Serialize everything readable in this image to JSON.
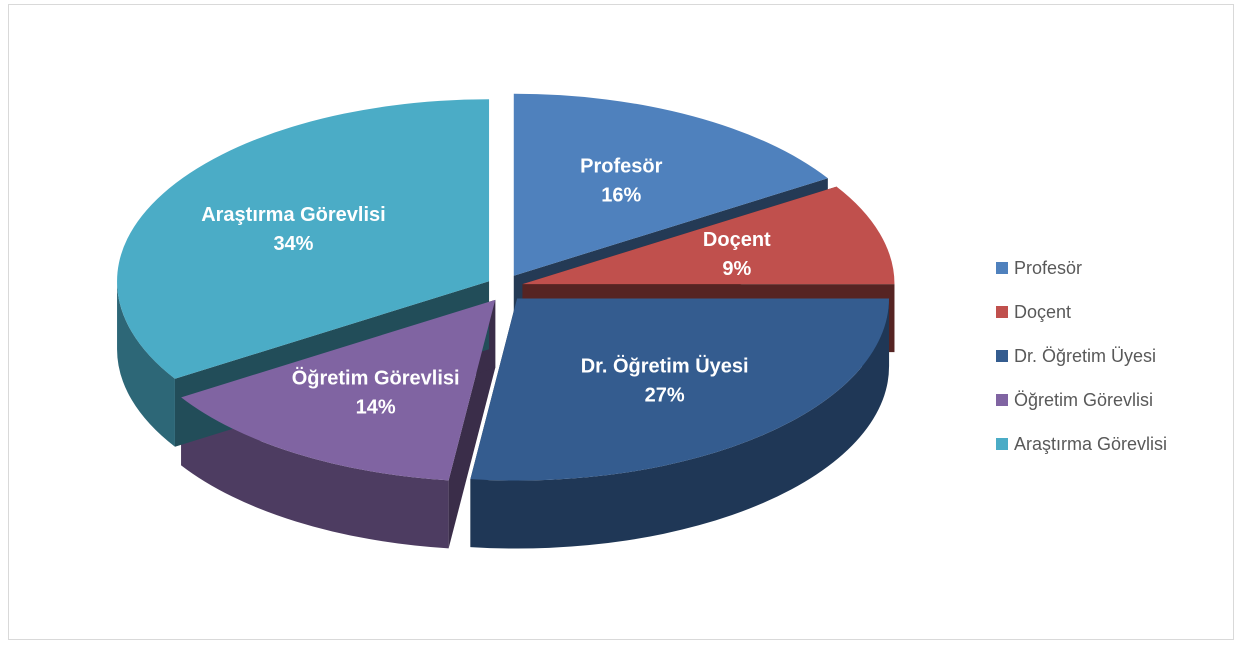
{
  "chart_data": {
    "type": "pie",
    "categories": [
      "Profesör",
      "Doçent",
      "Dr. Öğretim Üyesi",
      "Öğretim Görevlisi",
      "Araştırma Görevlisi"
    ],
    "values": [
      16,
      9,
      27,
      14,
      34
    ],
    "value_labels": [
      "16%",
      "9%",
      "27%",
      "14%",
      "34%"
    ],
    "colors": [
      "#4f81bd",
      "#c0504d",
      "#345c8f",
      "#8064a2",
      "#4bacc6"
    ],
    "legend": "right"
  }
}
